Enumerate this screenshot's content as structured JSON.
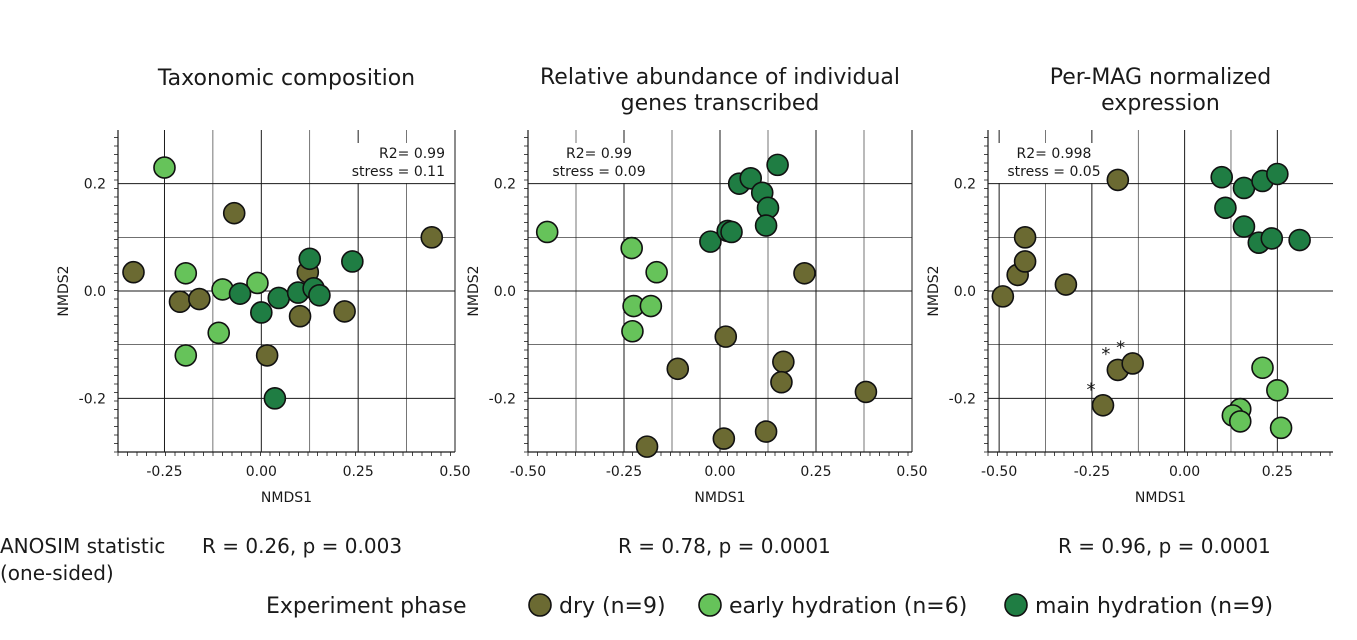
{
  "colors": {
    "dry": "#6b6a32",
    "early": "#66c35a",
    "main": "#1f7d43"
  },
  "anosim": {
    "label1": "ANOSIM statistic",
    "label2": "(one-sided)"
  },
  "legend": {
    "title": "Experiment phase",
    "items": [
      {
        "key": "dry",
        "label": "dry (n=9)"
      },
      {
        "key": "early",
        "label": "early hydration (n=6)"
      },
      {
        "key": "main",
        "label": "main hydration (n=9)"
      }
    ]
  },
  "chart_data": [
    {
      "type": "scatter",
      "title": [
        "Taxonomic composition"
      ],
      "xlabel": "NMDS1",
      "ylabel": "NMDS2",
      "xlim": [
        -0.37,
        0.5
      ],
      "ylim": [
        -0.3,
        0.3
      ],
      "xticks": [
        "-0.25",
        "0.00",
        "0.25",
        "0.50"
      ],
      "xtick_values": [
        -0.25,
        0,
        0.25,
        0.5
      ],
      "yticks": [
        "0.2",
        "0.0",
        "-0.2"
      ],
      "ytick_values": [
        0.2,
        0,
        -0.2
      ],
      "annotation": [
        "R2= 0.99",
        "stress = 0.11"
      ],
      "anosim": "R = 0.26, p = 0.003",
      "series": [
        {
          "name": "dry (n=9)",
          "key": "dry",
          "points": [
            [
              -0.33,
              0.035
            ],
            [
              -0.21,
              -0.02
            ],
            [
              -0.16,
              -0.015
            ],
            [
              -0.07,
              0.145
            ],
            [
              0.015,
              -0.12
            ],
            [
              0.12,
              0.035
            ],
            [
              0.1,
              -0.047
            ],
            [
              0.215,
              -0.038
            ],
            [
              0.44,
              0.1
            ]
          ]
        },
        {
          "name": "early hydration (n=6)",
          "key": "early",
          "points": [
            [
              -0.25,
              0.23
            ],
            [
              -0.195,
              0.033
            ],
            [
              -0.1,
              0.003
            ],
            [
              -0.11,
              -0.078
            ],
            [
              -0.01,
              0.015
            ],
            [
              -0.195,
              -0.12
            ]
          ]
        },
        {
          "name": "main hydration (n=9)",
          "key": "main",
          "points": [
            [
              -0.055,
              -0.005
            ],
            [
              0.0,
              -0.04
            ],
            [
              0.045,
              -0.013
            ],
            [
              0.095,
              -0.003
            ],
            [
              0.125,
              0.06
            ],
            [
              0.135,
              0.005
            ],
            [
              0.15,
              -0.008
            ],
            [
              0.235,
              0.055
            ],
            [
              0.035,
              -0.2
            ]
          ]
        }
      ]
    },
    {
      "type": "scatter",
      "title": [
        "Relative abundance of individual",
        "genes transcribed"
      ],
      "xlabel": "NMDS1",
      "ylabel": "NMDS2",
      "xlim": [
        -0.5,
        0.5
      ],
      "ylim": [
        -0.3,
        0.3
      ],
      "xticks": [
        "-0.50",
        "-0.25",
        "0.00",
        "0.25",
        "0.50"
      ],
      "xtick_values": [
        -0.5,
        -0.25,
        0,
        0.25,
        0.5
      ],
      "yticks": [
        "0.2",
        "0.0",
        "-0.2"
      ],
      "ytick_values": [
        0.2,
        0,
        -0.2
      ],
      "annotation": [
        "R2= 0.99",
        "stress = 0.09"
      ],
      "anosim": "R = 0.78, p = 0.0001",
      "series": [
        {
          "name": "dry (n=9)",
          "key": "dry",
          "points": [
            [
              -0.19,
              -0.29
            ],
            [
              -0.11,
              -0.145
            ],
            [
              0.015,
              -0.085
            ],
            [
              0.01,
              -0.275
            ],
            [
              0.12,
              -0.262
            ],
            [
              0.165,
              -0.132
            ],
            [
              0.16,
              -0.17
            ],
            [
              0.22,
              0.033
            ],
            [
              0.38,
              -0.188
            ]
          ]
        },
        {
          "name": "early hydration (n=6)",
          "key": "early",
          "points": [
            [
              -0.45,
              0.11
            ],
            [
              -0.23,
              0.08
            ],
            [
              -0.165,
              0.035
            ],
            [
              -0.225,
              -0.028
            ],
            [
              -0.18,
              -0.028
            ],
            [
              -0.228,
              -0.075
            ]
          ]
        },
        {
          "name": "main hydration (n=9)",
          "key": "main",
          "points": [
            [
              -0.025,
              0.092
            ],
            [
              0.02,
              0.112
            ],
            [
              0.03,
              0.11
            ],
            [
              0.05,
              0.2
            ],
            [
              0.08,
              0.21
            ],
            [
              0.11,
              0.183
            ],
            [
              0.125,
              0.155
            ],
            [
              0.12,
              0.122
            ],
            [
              0.15,
              0.235
            ]
          ]
        }
      ]
    },
    {
      "type": "scatter",
      "title": [
        "Per-MAG normalized",
        "expression"
      ],
      "xlabel": "NMDS1",
      "ylabel": "NMDS2",
      "xlim": [
        -0.53,
        0.4
      ],
      "ylim": [
        -0.3,
        0.3
      ],
      "xticks": [
        "-0.50",
        "-0.25",
        "0.00",
        "0.25"
      ],
      "xtick_values": [
        -0.5,
        -0.25,
        0,
        0.25
      ],
      "yticks": [
        "0.2",
        "0.0",
        "-0.2"
      ],
      "ytick_values": [
        0.2,
        0,
        -0.2
      ],
      "annotation": [
        "R2= 0.998",
        "stress = 0.05"
      ],
      "anosim": "R = 0.96, p = 0.0001",
      "starred_points": [
        [
          -0.22,
          -0.213
        ],
        [
          -0.18,
          -0.147
        ],
        [
          -0.14,
          -0.135
        ]
      ],
      "series": [
        {
          "name": "dry (n=9)",
          "key": "dry",
          "points": [
            [
              -0.49,
              -0.01
            ],
            [
              -0.45,
              0.03
            ],
            [
              -0.43,
              0.055
            ],
            [
              -0.43,
              0.1
            ],
            [
              -0.32,
              0.012
            ],
            [
              -0.18,
              0.207
            ],
            [
              -0.22,
              -0.213
            ],
            [
              -0.18,
              -0.147
            ],
            [
              -0.14,
              -0.135
            ]
          ]
        },
        {
          "name": "early hydration (n=6)",
          "key": "early",
          "points": [
            [
              0.21,
              -0.143
            ],
            [
              0.25,
              -0.185
            ],
            [
              0.26,
              -0.255
            ],
            [
              0.15,
              -0.22
            ],
            [
              0.13,
              -0.232
            ],
            [
              0.15,
              -0.243
            ]
          ]
        },
        {
          "name": "main hydration (n=9)",
          "key": "main",
          "points": [
            [
              0.1,
              0.212
            ],
            [
              0.11,
              0.155
            ],
            [
              0.16,
              0.192
            ],
            [
              0.21,
              0.205
            ],
            [
              0.25,
              0.218
            ],
            [
              0.16,
              0.12
            ],
            [
              0.2,
              0.09
            ],
            [
              0.235,
              0.098
            ],
            [
              0.31,
              0.095
            ]
          ]
        }
      ]
    }
  ]
}
